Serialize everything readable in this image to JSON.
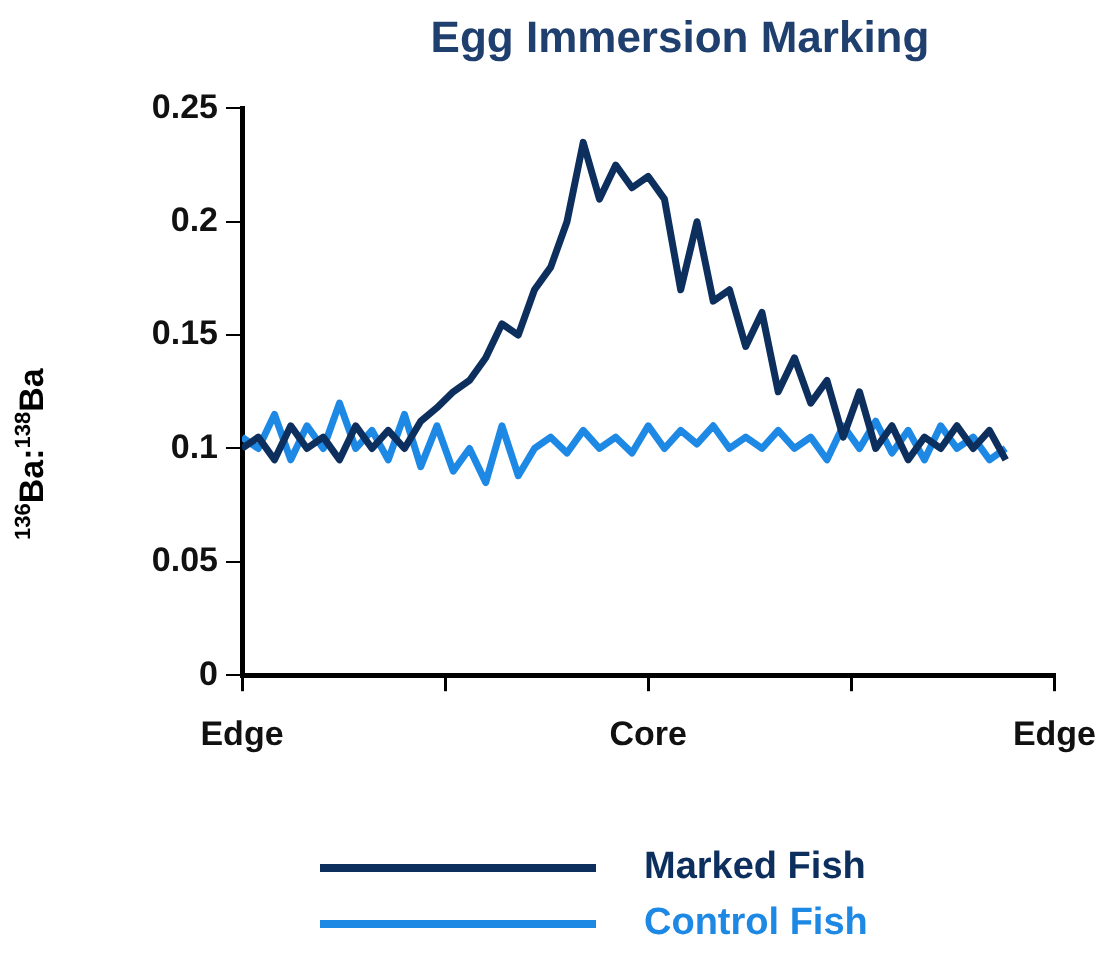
{
  "chart_data": {
    "type": "line",
    "title": "Egg Immersion Marking",
    "ylabel": "$^{136}$Ba:$^{138}$Ba",
    "categories": [
      "Edge",
      null,
      null,
      null,
      null,
      null,
      null,
      null,
      null,
      null,
      null,
      null,
      null,
      null,
      null,
      null,
      null,
      null,
      null,
      null,
      null,
      null,
      null,
      null,
      null,
      "Core",
      null,
      null,
      null,
      null,
      null,
      null,
      null,
      null,
      null,
      null,
      null,
      null,
      null,
      null,
      null,
      null,
      null,
      null,
      null,
      null,
      null,
      null,
      null,
      null,
      "Edge"
    ],
    "ylim": [
      0,
      0.25
    ],
    "yticks": [
      0,
      0.05,
      0.1,
      0.15,
      0.2,
      0.25
    ],
    "grid": false,
    "legend": "bottom",
    "marker": "none",
    "line_style": "solid",
    "series": [
      {
        "name": "Marked Fish",
        "color": "#0d2f5e",
        "values": [
          0.1,
          0.105,
          0.095,
          0.11,
          0.1,
          0.105,
          0.095,
          0.11,
          0.1,
          0.108,
          0.1,
          0.112,
          0.118,
          0.125,
          0.13,
          0.14,
          0.155,
          0.15,
          0.17,
          0.18,
          0.2,
          0.235,
          0.21,
          0.225,
          0.215,
          0.22,
          0.21,
          0.17,
          0.2,
          0.165,
          0.17,
          0.145,
          0.16,
          0.125,
          0.14,
          0.12,
          0.13,
          0.105,
          0.125,
          0.1,
          0.11,
          0.095,
          0.105,
          0.1,
          0.11,
          0.1,
          0.108,
          0.095,
          null,
          null,
          null
        ]
      },
      {
        "name": "Control Fish",
        "color": "#1e88e5",
        "values": [
          0.105,
          0.1,
          0.115,
          0.095,
          0.11,
          0.1,
          0.12,
          0.1,
          0.108,
          0.095,
          0.115,
          0.092,
          0.11,
          0.09,
          0.1,
          0.085,
          0.11,
          0.088,
          0.1,
          0.105,
          0.098,
          0.108,
          0.1,
          0.105,
          0.098,
          0.11,
          0.1,
          0.108,
          0.102,
          0.11,
          0.1,
          0.105,
          0.1,
          0.108,
          0.1,
          0.105,
          0.095,
          0.11,
          0.1,
          0.112,
          0.098,
          0.108,
          0.095,
          0.11,
          0.1,
          0.105,
          0.095,
          0.1,
          null,
          null,
          null
        ]
      }
    ]
  }
}
